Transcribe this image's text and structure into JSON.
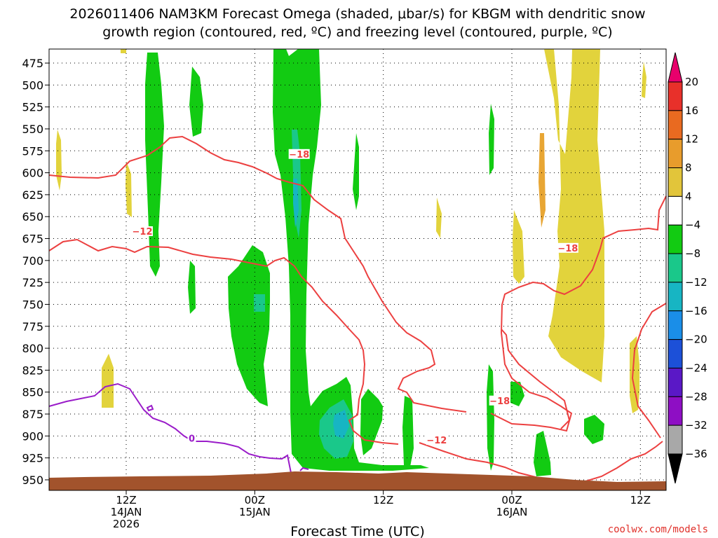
{
  "chart_data": {
    "type": "contour",
    "title_line1": "2026011406 NAM3KM Forecast Omega (shaded, μbar/s) for KBGM with dendritic snow",
    "title_line2": "growth region (contoured, red, ºC) and freezing level (contoured, purple, ºC)",
    "xlabel": "Forecast Time (UTC)",
    "credit": "coolwx.com/models",
    "x_forecast_hours": [
      6,
      54
    ],
    "x_ticks": [
      {
        "hour": 12,
        "lines": [
          "12Z",
          "14JAN",
          "2026"
        ]
      },
      {
        "hour": 22,
        "lines": [
          "00Z",
          "15JAN"
        ]
      },
      {
        "hour": 32,
        "lines": [
          "12Z"
        ]
      },
      {
        "hour": 42,
        "lines": [
          "00Z",
          "16JAN"
        ]
      },
      {
        "hour": 52,
        "lines": [
          "12Z"
        ]
      }
    ],
    "y_pressure_levels": [
      475,
      500,
      525,
      550,
      575,
      600,
      625,
      650,
      675,
      700,
      725,
      750,
      775,
      800,
      825,
      850,
      875,
      900,
      925,
      950
    ],
    "ylim": [
      459,
      962
    ],
    "surface_colour": "#a2532c",
    "colorbar": {
      "labels": [
        "20",
        "16",
        "12",
        "8",
        "4",
        "−4",
        "−8",
        "−12",
        "−16",
        "−20",
        "−24",
        "−28",
        "−32",
        "−36"
      ],
      "colors": [
        "#e8006c",
        "#e8302a",
        "#e96a20",
        "#e89c2c",
        "#e2c53a",
        "#ffffff",
        "#12cb12",
        "#1ac88a",
        "#17b5c3",
        "#1a8ee8",
        "#1c50d8",
        "#5a18c6",
        "#8e0ec4",
        "#a8a8a8",
        "#000000"
      ]
    },
    "omega_colors": {
      "pos4": "#e2d33c",
      "pos8": "#e8a634",
      "neg4": "#12cb12",
      "neg8": "#1ac88a",
      "neg12": "#17b5c3"
    },
    "dgz_contour_labels": [
      {
        "text": "−18",
        "hour": 25.4,
        "p": 581
      },
      {
        "text": "−12",
        "hour": 13.2,
        "p": 669
      },
      {
        "text": "−18",
        "hour": 46.3,
        "p": 688
      },
      {
        "text": "−18",
        "hour": 41.0,
        "p": 862
      },
      {
        "text": "−12",
        "hour": 36.1,
        "p": 907
      }
    ],
    "freezing_contour_labels": [
      {
        "text": "0",
        "hour": 17.1,
        "p": 905
      }
    ],
    "dgz_color": "#ec4040",
    "freezing_color": "#9a1cc9"
  }
}
